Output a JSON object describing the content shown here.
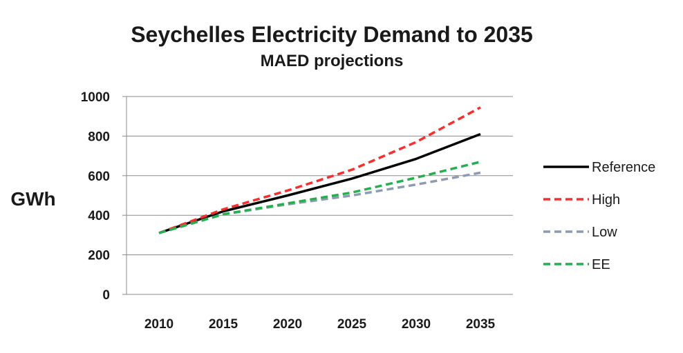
{
  "chart_data": {
    "type": "line",
    "title": "Seychelles Electricity Demand to 2035",
    "subtitle": "MAED projections",
    "ylabel": "GWh",
    "xlabel": "",
    "x": [
      2010,
      2015,
      2020,
      2025,
      2030,
      2035
    ],
    "x_tick_labels": [
      "2010",
      "2015",
      "2020",
      "2025",
      "2030",
      "2035"
    ],
    "y_ticks": [
      0,
      200,
      400,
      600,
      800,
      1000
    ],
    "y_tick_labels": [
      "0",
      "200",
      "400",
      "600",
      "800",
      "1000"
    ],
    "ylim": [
      0,
      1000
    ],
    "grid": "horizontal",
    "legend_position": "right",
    "series": [
      {
        "name": "Reference",
        "values": [
          310,
          420,
          500,
          585,
          685,
          810
        ],
        "color": "#000000",
        "style": "solid"
      },
      {
        "name": "High",
        "values": [
          310,
          430,
          525,
          630,
          770,
          945
        ],
        "color": "#ff2b2b",
        "style": "dashed"
      },
      {
        "name": "Low",
        "values": [
          310,
          405,
          455,
          500,
          555,
          615
        ],
        "color": "#8c9bb3",
        "style": "dashed"
      },
      {
        "name": "EE",
        "values": [
          310,
          405,
          460,
          515,
          590,
          670
        ],
        "color": "#23b14d",
        "style": "dashed"
      }
    ]
  }
}
